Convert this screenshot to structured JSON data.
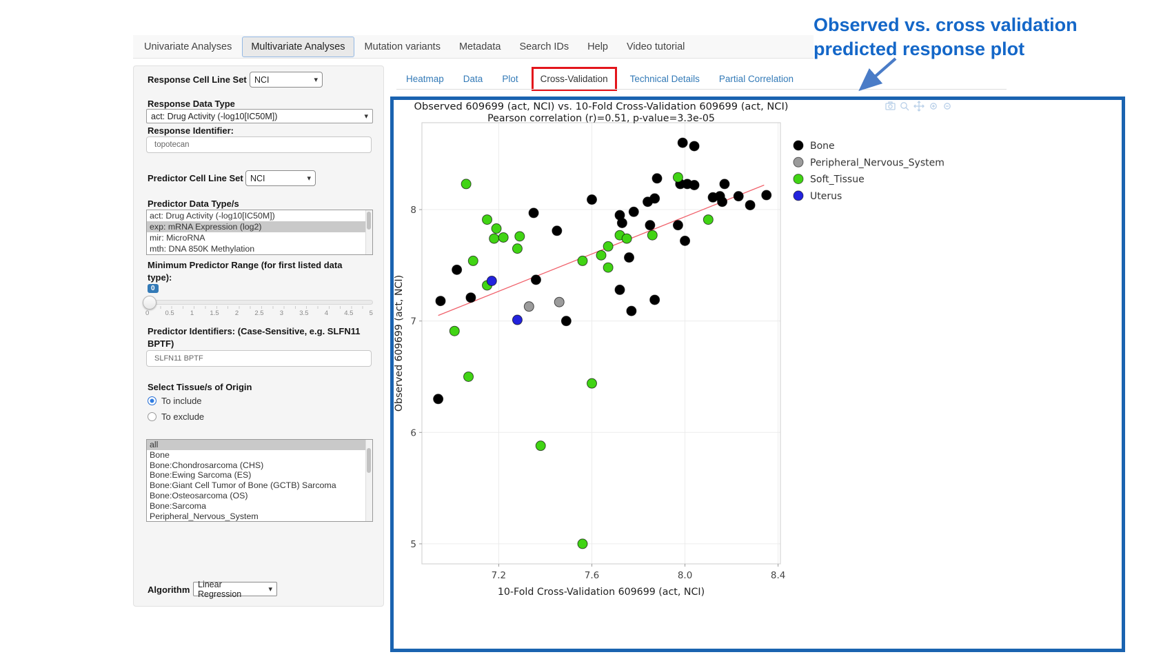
{
  "nav": {
    "tabs": [
      {
        "label": "Univariate Analyses",
        "active": false
      },
      {
        "label": "Multivariate Analyses",
        "active": true
      },
      {
        "label": "Mutation variants",
        "active": false
      },
      {
        "label": "Metadata",
        "active": false
      },
      {
        "label": "Search IDs",
        "active": false
      },
      {
        "label": "Help",
        "active": false
      },
      {
        "label": "Video tutorial",
        "active": false
      }
    ]
  },
  "sidebar": {
    "response_cell_line_set": {
      "label": "Response Cell Line Set",
      "value": "NCI"
    },
    "response_data_type": {
      "label": "Response Data Type",
      "value": "act: Drug Activity (-log10[IC50M])"
    },
    "response_identifier": {
      "label": "Response Identifier:",
      "value": "topotecan"
    },
    "predictor_cell_line_set": {
      "label": "Predictor Cell Line Set",
      "value": "NCI"
    },
    "predictor_data_types": {
      "label": "Predictor Data Type/s",
      "options": [
        "act: Drug Activity (-log10[IC50M])",
        "exp: mRNA Expression (log2)",
        "mir: MicroRNA",
        "mth: DNA 850K Methylation"
      ],
      "selected": "exp: mRNA Expression (log2)"
    },
    "min_predictor_range": {
      "label": "Minimum Predictor Range (for first listed data type):",
      "value": "0",
      "tick_labels": [
        "0",
        "0.5",
        "1",
        "1.5",
        "2",
        "2.5",
        "3",
        "3.5",
        "4",
        "4.5",
        "5"
      ]
    },
    "predictor_identifiers": {
      "label": "Predictor Identifiers: (Case-Sensitive, e.g. SLFN11 BPTF)",
      "value": "SLFN11 BPTF"
    },
    "tissue_origin": {
      "label": "Select Tissue/s of Origin",
      "options": [
        {
          "label": "To include",
          "selected": true
        },
        {
          "label": "To exclude",
          "selected": false
        }
      ]
    },
    "tissue_list": {
      "options": [
        "all",
        "Bone",
        "Bone:Chondrosarcoma (CHS)",
        "Bone:Ewing Sarcoma (ES)",
        "Bone:Giant Cell Tumor of Bone (GCTB) Sarcoma",
        "Bone:Osteosarcoma (OS)",
        "Bone:Sarcoma",
        "Peripheral_Nervous_System"
      ],
      "selected": "all"
    },
    "algorithm": {
      "label": "Algorithm",
      "value": "Linear Regression"
    }
  },
  "main_tabs": {
    "items": [
      {
        "label": "Heatmap",
        "active": false,
        "highlighted": false
      },
      {
        "label": "Data",
        "active": false,
        "highlighted": false
      },
      {
        "label": "Plot",
        "active": false,
        "highlighted": false
      },
      {
        "label": "Cross-Validation",
        "active": true,
        "highlighted": true
      },
      {
        "label": "Technical Details",
        "active": false,
        "highlighted": false
      },
      {
        "label": "Partial Correlation",
        "active": false,
        "highlighted": false
      }
    ],
    "highlight_color": "#e3151b"
  },
  "annotation": {
    "line1": "Observed vs. cross validation",
    "line2": "predicted response plot",
    "color": "#1467c8"
  },
  "modebar_icons": [
    "camera-icon",
    "zoom-icon",
    "pan-icon",
    "zoom-in-icon",
    "zoom-out-icon"
  ],
  "chart_data": {
    "type": "scatter",
    "title": "Observed 609699 (act, NCI) vs. 10-Fold Cross-Validation 609699 (act, NCI)",
    "subtitle": "Pearson correlation (r)=0.51, p-value=3.3e-05",
    "xlabel": "10-Fold Cross-Validation 609699 (act, NCI)",
    "ylabel": "Observed 609699 (act, NCI)",
    "xlim": [
      6.87,
      8.41
    ],
    "ylim": [
      4.82,
      8.78
    ],
    "xticks": [
      7.2,
      7.6,
      8.0,
      8.4
    ],
    "yticks": [
      5,
      6,
      7,
      8
    ],
    "xtick_labels": [
      "7.2",
      "7.6",
      "8.0",
      "8.4"
    ],
    "ytick_labels": [
      "5",
      "6",
      "7",
      "8"
    ],
    "grid": true,
    "legend_position": "right",
    "series": [
      {
        "name": "Bone",
        "color": "#000000",
        "points": [
          [
            7.99,
            8.6
          ],
          [
            8.04,
            8.57
          ],
          [
            7.88,
            8.28
          ],
          [
            7.98,
            8.23
          ],
          [
            8.01,
            8.23
          ],
          [
            8.04,
            8.22
          ],
          [
            8.17,
            8.23
          ],
          [
            7.6,
            8.09
          ],
          [
            7.84,
            8.07
          ],
          [
            7.87,
            8.1
          ],
          [
            8.12,
            8.11
          ],
          [
            8.15,
            8.12
          ],
          [
            8.16,
            8.07
          ],
          [
            8.23,
            8.12
          ],
          [
            8.28,
            8.04
          ],
          [
            8.35,
            8.13
          ],
          [
            7.35,
            7.97
          ],
          [
            7.72,
            7.95
          ],
          [
            7.73,
            7.88
          ],
          [
            7.78,
            7.98
          ],
          [
            7.85,
            7.86
          ],
          [
            7.45,
            7.81
          ],
          [
            7.97,
            7.86
          ],
          [
            8.0,
            7.72
          ],
          [
            7.76,
            7.57
          ],
          [
            7.02,
            7.46
          ],
          [
            7.36,
            7.37
          ],
          [
            7.08,
            7.21
          ],
          [
            6.95,
            7.18
          ],
          [
            7.72,
            7.28
          ],
          [
            7.87,
            7.19
          ],
          [
            7.77,
            7.09
          ],
          [
            7.49,
            7.0
          ],
          [
            6.94,
            6.3
          ]
        ]
      },
      {
        "name": "Peripheral_Nervous_System",
        "color": "#9b9b9b",
        "points": [
          [
            7.33,
            7.13
          ],
          [
            7.46,
            7.17
          ]
        ]
      },
      {
        "name": "Soft_Tissue",
        "color": "#41d414",
        "points": [
          [
            7.06,
            8.23
          ],
          [
            7.15,
            7.91
          ],
          [
            7.19,
            7.83
          ],
          [
            7.18,
            7.74
          ],
          [
            7.22,
            7.75
          ],
          [
            7.29,
            7.76
          ],
          [
            7.28,
            7.65
          ],
          [
            7.09,
            7.54
          ],
          [
            7.15,
            7.32
          ],
          [
            7.97,
            8.29
          ],
          [
            8.1,
            7.91
          ],
          [
            7.72,
            7.77
          ],
          [
            7.75,
            7.74
          ],
          [
            7.86,
            7.77
          ],
          [
            7.67,
            7.67
          ],
          [
            7.56,
            7.54
          ],
          [
            7.64,
            7.59
          ],
          [
            7.67,
            7.48
          ],
          [
            7.01,
            6.91
          ],
          [
            7.07,
            6.5
          ],
          [
            7.6,
            6.44
          ],
          [
            7.38,
            5.88
          ],
          [
            7.56,
            5.0
          ]
        ]
      },
      {
        "name": "Uterus",
        "color": "#2323dd",
        "points": [
          [
            7.17,
            7.36
          ],
          [
            7.28,
            7.01
          ]
        ]
      }
    ],
    "trend_line": {
      "from": [
        6.94,
        7.05
      ],
      "to": [
        8.34,
        8.22
      ],
      "color": "#f0616b"
    }
  }
}
